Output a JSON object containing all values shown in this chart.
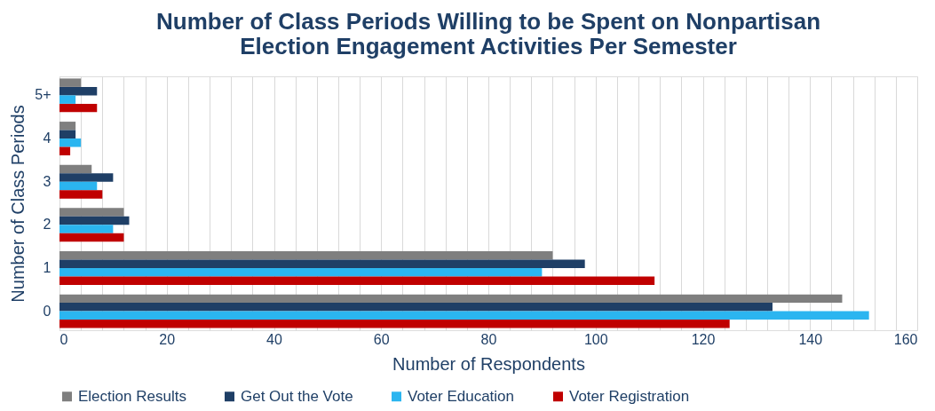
{
  "chart_data": {
    "type": "bar",
    "orientation": "horizontal",
    "title": "Number of Class Periods Willing to be Spent on Nonpartisan\nElection Engagement Activities Per Semester",
    "xlabel": "Number of Respondents",
    "ylabel": "Number of Class Periods",
    "categories": [
      "5+",
      "4",
      "3",
      "2",
      "1",
      "0"
    ],
    "series": [
      {
        "name": "Election Results",
        "color": "#7f7f7f",
        "values": [
          4,
          3,
          6,
          12,
          92,
          146
        ]
      },
      {
        "name": "Get Out the Vote",
        "color": "#1f3f66",
        "values": [
          7,
          3,
          10,
          13,
          98,
          133
        ]
      },
      {
        "name": "Voter Education",
        "color": "#2bb5f0",
        "values": [
          3,
          4,
          7,
          10,
          90,
          151
        ]
      },
      {
        "name": "Voter Registration",
        "color": "#c00000",
        "values": [
          7,
          2,
          8,
          12,
          111,
          125
        ]
      }
    ],
    "xlim": [
      0,
      160
    ],
    "xticks": [
      0,
      {
        "value": 4,
        "label": null
      },
      {
        "value": 8,
        "label": null
      },
      {
        "value": 12,
        "label": null
      },
      {
        "value": 16,
        "label": null
      },
      20,
      {
        "value": 24,
        "label": null
      },
      {
        "value": 28,
        "label": null
      },
      {
        "value": 32,
        "label": null
      },
      {
        "value": 36,
        "label": null
      },
      40,
      {
        "value": 44,
        "label": null
      },
      {
        "value": 48,
        "label": null
      },
      {
        "value": 52,
        "label": null
      },
      {
        "value": 56,
        "label": null
      },
      60,
      {
        "value": 64,
        "label": null
      },
      {
        "value": 68,
        "label": null
      },
      {
        "value": 72,
        "label": null
      },
      {
        "value": 76,
        "label": null
      },
      80,
      {
        "value": 84,
        "label": null
      },
      {
        "value": 88,
        "label": null
      },
      {
        "value": 92,
        "label": null
      },
      {
        "value": 96,
        "label": null
      },
      100,
      {
        "value": 104,
        "label": null
      },
      {
        "value": 108,
        "label": null
      },
      {
        "value": 112,
        "label": null
      },
      {
        "value": 116,
        "label": null
      },
      120,
      {
        "value": 124,
        "label": null
      },
      {
        "value": 128,
        "label": null
      },
      {
        "value": 132,
        "label": null
      },
      {
        "value": 136,
        "label": null
      },
      140,
      {
        "value": 144,
        "label": null
      },
      {
        "value": 148,
        "label": null
      },
      {
        "value": 152,
        "label": null
      },
      {
        "value": 156,
        "label": null
      },
      160
    ],
    "grid": "x",
    "legend": "bottom"
  }
}
